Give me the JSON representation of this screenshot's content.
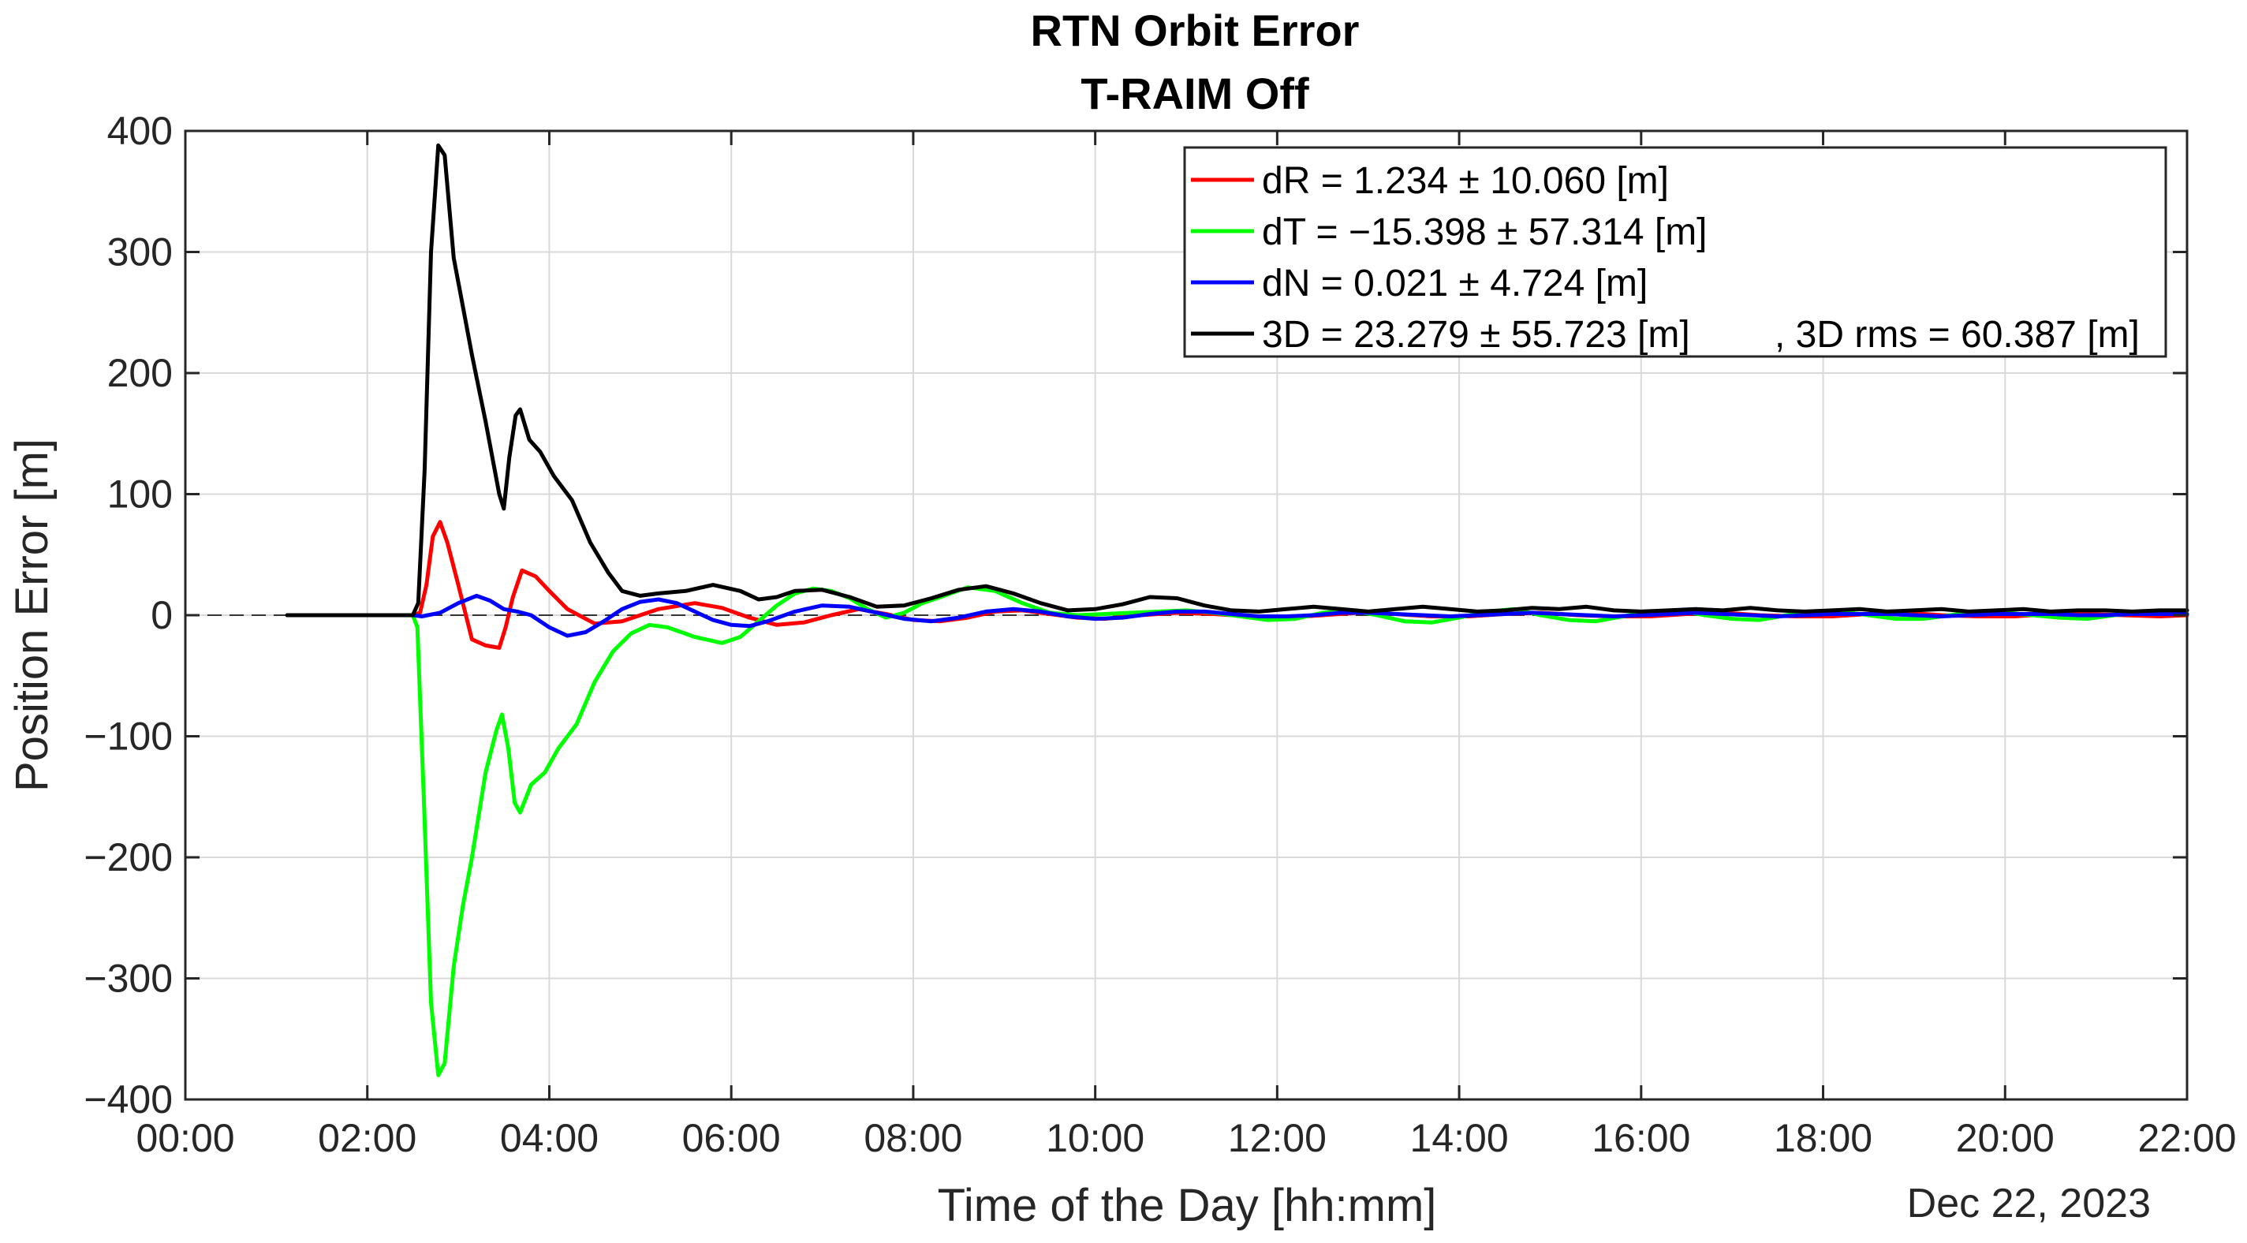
{
  "chart_data": {
    "type": "line",
    "title": "RTN Orbit Error",
    "subtitle": "T-RAIM Off",
    "xlabel": "Time of the Day [hh:mm]",
    "ylabel": "Position Error [m]",
    "date_label": "Dec 22, 2023",
    "xlim_hours": [
      0,
      22
    ],
    "ylim": [
      -400,
      400
    ],
    "x_ticks": [
      {
        "value": 0,
        "label": "00:00"
      },
      {
        "value": 2,
        "label": "02:00"
      },
      {
        "value": 4,
        "label": "04:00"
      },
      {
        "value": 6,
        "label": "06:00"
      },
      {
        "value": 8,
        "label": "08:00"
      },
      {
        "value": 10,
        "label": "10:00"
      },
      {
        "value": 12,
        "label": "12:00"
      },
      {
        "value": 14,
        "label": "14:00"
      },
      {
        "value": 16,
        "label": "16:00"
      },
      {
        "value": 18,
        "label": "18:00"
      },
      {
        "value": 20,
        "label": "20:00"
      },
      {
        "value": 22,
        "label": "22:00"
      }
    ],
    "y_ticks": [
      {
        "value": 400,
        "label": "400"
      },
      {
        "value": 300,
        "label": "300"
      },
      {
        "value": 200,
        "label": "200"
      },
      {
        "value": 100,
        "label": "100"
      },
      {
        "value": 0,
        "label": "0"
      },
      {
        "value": -100,
        "label": "−100"
      },
      {
        "value": -200,
        "label": "−200"
      },
      {
        "value": -300,
        "label": "−300"
      },
      {
        "value": -400,
        "label": "−400"
      }
    ],
    "grid": true,
    "zero_line": "dashed",
    "legend_position": "top-right",
    "series": [
      {
        "name": "dR = 1.234 ± 10.060 [m]",
        "color": "#ff0000",
        "points": [
          [
            1.12,
            0
          ],
          [
            2.5,
            0
          ],
          [
            2.58,
            2
          ],
          [
            2.65,
            25
          ],
          [
            2.72,
            65
          ],
          [
            2.8,
            77
          ],
          [
            2.88,
            60
          ],
          [
            3.0,
            25
          ],
          [
            3.15,
            -20
          ],
          [
            3.3,
            -25
          ],
          [
            3.45,
            -27
          ],
          [
            3.52,
            -10
          ],
          [
            3.6,
            15
          ],
          [
            3.7,
            37
          ],
          [
            3.85,
            32
          ],
          [
            4.0,
            20
          ],
          [
            4.2,
            5
          ],
          [
            4.5,
            -7
          ],
          [
            4.8,
            -5
          ],
          [
            5.2,
            5
          ],
          [
            5.6,
            10
          ],
          [
            5.9,
            6
          ],
          [
            6.2,
            -2
          ],
          [
            6.5,
            -8
          ],
          [
            6.8,
            -6
          ],
          [
            7.1,
            0
          ],
          [
            7.4,
            5
          ],
          [
            7.7,
            1
          ],
          [
            8.0,
            -4
          ],
          [
            8.3,
            -5
          ],
          [
            8.6,
            -2
          ],
          [
            8.9,
            3
          ],
          [
            9.2,
            4
          ],
          [
            9.5,
            1
          ],
          [
            9.8,
            -2
          ],
          [
            10.1,
            -3
          ],
          [
            10.5,
            0
          ],
          [
            10.9,
            2
          ],
          [
            11.3,
            1
          ],
          [
            11.7,
            -1
          ],
          [
            12.1,
            -2
          ],
          [
            12.5,
            0
          ],
          [
            12.9,
            2
          ],
          [
            13.3,
            1
          ],
          [
            13.7,
            -1
          ],
          [
            14.1,
            -1
          ],
          [
            14.5,
            1
          ],
          [
            14.9,
            2
          ],
          [
            15.3,
            0
          ],
          [
            15.7,
            -1
          ],
          [
            16.1,
            -1
          ],
          [
            16.5,
            1
          ],
          [
            16.9,
            2
          ],
          [
            17.3,
            0
          ],
          [
            17.7,
            -1
          ],
          [
            18.1,
            -1
          ],
          [
            18.5,
            1
          ],
          [
            18.9,
            2
          ],
          [
            19.3,
            0
          ],
          [
            19.7,
            -1
          ],
          [
            20.1,
            -1
          ],
          [
            20.5,
            1
          ],
          [
            20.9,
            1
          ],
          [
            21.3,
            0
          ],
          [
            21.7,
            -1
          ],
          [
            22.0,
            0
          ]
        ]
      },
      {
        "name": "dT = −15.398 ± 57.314 [m]",
        "color": "#00ff00",
        "points": [
          [
            1.12,
            0
          ],
          [
            2.5,
            0
          ],
          [
            2.55,
            -10
          ],
          [
            2.62,
            -150
          ],
          [
            2.7,
            -320
          ],
          [
            2.78,
            -380
          ],
          [
            2.85,
            -370
          ],
          [
            2.95,
            -290
          ],
          [
            3.05,
            -240
          ],
          [
            3.15,
            -200
          ],
          [
            3.3,
            -130
          ],
          [
            3.42,
            -95
          ],
          [
            3.48,
            -82
          ],
          [
            3.55,
            -110
          ],
          [
            3.62,
            -155
          ],
          [
            3.68,
            -163
          ],
          [
            3.8,
            -140
          ],
          [
            3.95,
            -130
          ],
          [
            4.1,
            -110
          ],
          [
            4.3,
            -90
          ],
          [
            4.5,
            -55
          ],
          [
            4.7,
            -30
          ],
          [
            4.9,
            -15
          ],
          [
            5.1,
            -8
          ],
          [
            5.3,
            -10
          ],
          [
            5.6,
            -18
          ],
          [
            5.9,
            -23
          ],
          [
            6.1,
            -18
          ],
          [
            6.3,
            -5
          ],
          [
            6.5,
            8
          ],
          [
            6.7,
            18
          ],
          [
            6.9,
            22
          ],
          [
            7.1,
            20
          ],
          [
            7.3,
            14
          ],
          [
            7.5,
            5
          ],
          [
            7.7,
            -2
          ],
          [
            7.9,
            2
          ],
          [
            8.1,
            10
          ],
          [
            8.3,
            15
          ],
          [
            8.6,
            23
          ],
          [
            8.9,
            20
          ],
          [
            9.2,
            10
          ],
          [
            9.5,
            2
          ],
          [
            9.8,
            0
          ],
          [
            10.1,
            1
          ],
          [
            10.4,
            2
          ],
          [
            10.7,
            3
          ],
          [
            11.0,
            4
          ],
          [
            11.3,
            2
          ],
          [
            11.6,
            -1
          ],
          [
            11.9,
            -4
          ],
          [
            12.2,
            -3
          ],
          [
            12.5,
            2
          ],
          [
            12.8,
            4
          ],
          [
            13.1,
            0
          ],
          [
            13.4,
            -5
          ],
          [
            13.7,
            -6
          ],
          [
            14.0,
            -2
          ],
          [
            14.3,
            3
          ],
          [
            14.6,
            5
          ],
          [
            14.9,
            0
          ],
          [
            15.2,
            -4
          ],
          [
            15.5,
            -5
          ],
          [
            15.8,
            -1
          ],
          [
            16.1,
            3
          ],
          [
            16.4,
            4
          ],
          [
            16.7,
            0
          ],
          [
            17.0,
            -3
          ],
          [
            17.3,
            -4
          ],
          [
            17.6,
            0
          ],
          [
            17.9,
            3
          ],
          [
            18.2,
            3
          ],
          [
            18.5,
            0
          ],
          [
            18.8,
            -3
          ],
          [
            19.1,
            -3
          ],
          [
            19.4,
            0
          ],
          [
            19.7,
            3
          ],
          [
            20.0,
            2
          ],
          [
            20.3,
            0
          ],
          [
            20.6,
            -2
          ],
          [
            20.9,
            -3
          ],
          [
            21.2,
            0
          ],
          [
            21.5,
            2
          ],
          [
            21.8,
            2
          ],
          [
            22.0,
            1
          ]
        ]
      },
      {
        "name": "dN = 0.021 ± 4.724 [m]",
        "color": "#0000ff",
        "points": [
          [
            1.12,
            0
          ],
          [
            2.5,
            0
          ],
          [
            2.6,
            -1
          ],
          [
            2.8,
            2
          ],
          [
            3.0,
            10
          ],
          [
            3.2,
            16
          ],
          [
            3.35,
            12
          ],
          [
            3.5,
            5
          ],
          [
            3.65,
            3
          ],
          [
            3.8,
            0
          ],
          [
            4.0,
            -10
          ],
          [
            4.2,
            -17
          ],
          [
            4.4,
            -14
          ],
          [
            4.6,
            -5
          ],
          [
            4.8,
            5
          ],
          [
            5.0,
            11
          ],
          [
            5.2,
            13
          ],
          [
            5.4,
            10
          ],
          [
            5.6,
            3
          ],
          [
            5.8,
            -4
          ],
          [
            6.0,
            -8
          ],
          [
            6.2,
            -9
          ],
          [
            6.4,
            -5
          ],
          [
            6.7,
            3
          ],
          [
            7.0,
            8
          ],
          [
            7.3,
            7
          ],
          [
            7.6,
            2
          ],
          [
            7.9,
            -3
          ],
          [
            8.2,
            -5
          ],
          [
            8.5,
            -2
          ],
          [
            8.8,
            3
          ],
          [
            9.1,
            5
          ],
          [
            9.4,
            3
          ],
          [
            9.7,
            -1
          ],
          [
            10.0,
            -3
          ],
          [
            10.3,
            -2
          ],
          [
            10.6,
            1
          ],
          [
            10.9,
            3
          ],
          [
            11.2,
            3
          ],
          [
            11.5,
            1
          ],
          [
            11.8,
            -1
          ],
          [
            12.1,
            -1
          ],
          [
            12.4,
            0
          ],
          [
            12.7,
            2
          ],
          [
            13.0,
            2
          ],
          [
            13.3,
            1
          ],
          [
            13.6,
            0
          ],
          [
            13.9,
            -1
          ],
          [
            14.2,
            0
          ],
          [
            14.5,
            1
          ],
          [
            14.8,
            2
          ],
          [
            15.1,
            1
          ],
          [
            15.4,
            0
          ],
          [
            15.7,
            -1
          ],
          [
            16.0,
            0
          ],
          [
            16.3,
            1
          ],
          [
            16.6,
            2
          ],
          [
            16.9,
            1
          ],
          [
            17.2,
            0
          ],
          [
            17.5,
            -1
          ],
          [
            17.8,
            0
          ],
          [
            18.1,
            1
          ],
          [
            18.4,
            1
          ],
          [
            18.7,
            1
          ],
          [
            19.0,
            0
          ],
          [
            19.3,
            -1
          ],
          [
            19.6,
            0
          ],
          [
            19.9,
            1
          ],
          [
            20.2,
            1
          ],
          [
            20.5,
            1
          ],
          [
            20.8,
            0
          ],
          [
            21.1,
            0
          ],
          [
            21.4,
            1
          ],
          [
            21.7,
            1
          ],
          [
            22.0,
            1
          ]
        ]
      },
      {
        "name": "3D = 23.279 ± 55.723 [m]",
        "name_suffix": ", 3D rms = 60.387 [m]",
        "color": "#000000",
        "points": [
          [
            1.12,
            0
          ],
          [
            2.5,
            0
          ],
          [
            2.56,
            10
          ],
          [
            2.63,
            120
          ],
          [
            2.7,
            300
          ],
          [
            2.78,
            388
          ],
          [
            2.85,
            380
          ],
          [
            2.95,
            295
          ],
          [
            3.05,
            255
          ],
          [
            3.15,
            215
          ],
          [
            3.3,
            160
          ],
          [
            3.45,
            100
          ],
          [
            3.5,
            88
          ],
          [
            3.56,
            130
          ],
          [
            3.63,
            165
          ],
          [
            3.68,
            170
          ],
          [
            3.78,
            145
          ],
          [
            3.9,
            135
          ],
          [
            4.05,
            115
          ],
          [
            4.25,
            95
          ],
          [
            4.45,
            60
          ],
          [
            4.65,
            35
          ],
          [
            4.8,
            20
          ],
          [
            5.0,
            16
          ],
          [
            5.2,
            18
          ],
          [
            5.5,
            20
          ],
          [
            5.8,
            25
          ],
          [
            6.1,
            20
          ],
          [
            6.3,
            13
          ],
          [
            6.5,
            15
          ],
          [
            6.7,
            20
          ],
          [
            7.0,
            21
          ],
          [
            7.3,
            15
          ],
          [
            7.6,
            7
          ],
          [
            7.9,
            8
          ],
          [
            8.2,
            14
          ],
          [
            8.5,
            21
          ],
          [
            8.8,
            24
          ],
          [
            9.1,
            18
          ],
          [
            9.4,
            10
          ],
          [
            9.7,
            4
          ],
          [
            10.0,
            5
          ],
          [
            10.3,
            9
          ],
          [
            10.6,
            15
          ],
          [
            10.9,
            14
          ],
          [
            11.2,
            8
          ],
          [
            11.5,
            4
          ],
          [
            11.8,
            3
          ],
          [
            12.1,
            5
          ],
          [
            12.4,
            7
          ],
          [
            12.7,
            5
          ],
          [
            13.0,
            3
          ],
          [
            13.3,
            5
          ],
          [
            13.6,
            7
          ],
          [
            13.9,
            5
          ],
          [
            14.2,
            3
          ],
          [
            14.5,
            4
          ],
          [
            14.8,
            6
          ],
          [
            15.1,
            5
          ],
          [
            15.4,
            7
          ],
          [
            15.7,
            4
          ],
          [
            16.0,
            3
          ],
          [
            16.3,
            4
          ],
          [
            16.6,
            5
          ],
          [
            16.9,
            4
          ],
          [
            17.2,
            6
          ],
          [
            17.5,
            4
          ],
          [
            17.8,
            3
          ],
          [
            18.1,
            4
          ],
          [
            18.4,
            5
          ],
          [
            18.7,
            3
          ],
          [
            19.0,
            4
          ],
          [
            19.3,
            5
          ],
          [
            19.6,
            3
          ],
          [
            19.9,
            4
          ],
          [
            20.2,
            5
          ],
          [
            20.5,
            3
          ],
          [
            20.8,
            4
          ],
          [
            21.1,
            4
          ],
          [
            21.4,
            3
          ],
          [
            21.7,
            4
          ],
          [
            22.0,
            4
          ]
        ]
      }
    ]
  }
}
